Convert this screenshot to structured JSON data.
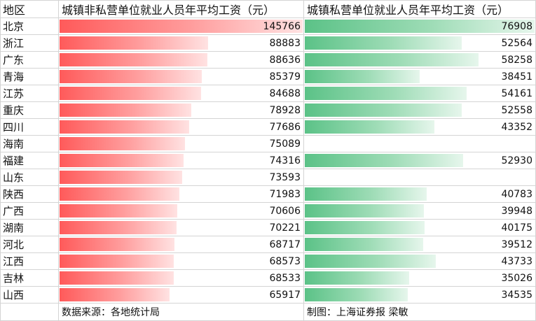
{
  "header": {
    "region": "地区",
    "nonprivate": "城镇非私营单位就业人员年平均工资（元）",
    "private": "城镇私营单位就业人员年平均工资（元）"
  },
  "footer": {
    "source": "数据来源：各地统计局",
    "credit": "制图：上海证券报 梁敏"
  },
  "colors": {
    "nonprivate_bar": "#ff5a5a",
    "private_bar": "#5bc287"
  },
  "rows": [
    {
      "region": "北京",
      "nonprivate": "145766",
      "private": "76908"
    },
    {
      "region": "浙江",
      "nonprivate": "88883",
      "private": "52564"
    },
    {
      "region": "广东",
      "nonprivate": "88636",
      "private": "58258"
    },
    {
      "region": "青海",
      "nonprivate": "85379",
      "private": "38451"
    },
    {
      "region": "江苏",
      "nonprivate": "84688",
      "private": "54161"
    },
    {
      "region": "重庆",
      "nonprivate": "78928",
      "private": "52558"
    },
    {
      "region": "四川",
      "nonprivate": "77686",
      "private": "43352"
    },
    {
      "region": "海南",
      "nonprivate": "75089",
      "private": ""
    },
    {
      "region": "福建",
      "nonprivate": "74316",
      "private": "52930"
    },
    {
      "region": "山东",
      "nonprivate": "73593",
      "private": ""
    },
    {
      "region": "陕西",
      "nonprivate": "71983",
      "private": "40783"
    },
    {
      "region": "广西",
      "nonprivate": "70606",
      "private": "39948"
    },
    {
      "region": "湖南",
      "nonprivate": "70221",
      "private": "40175"
    },
    {
      "region": "河北",
      "nonprivate": "68717",
      "private": "39512"
    },
    {
      "region": "江西",
      "nonprivate": "68573",
      "private": "43733"
    },
    {
      "region": "吉林",
      "nonprivate": "68533",
      "private": "35026"
    },
    {
      "region": "山西",
      "nonprivate": "65917",
      "private": "34535"
    }
  ]
}
